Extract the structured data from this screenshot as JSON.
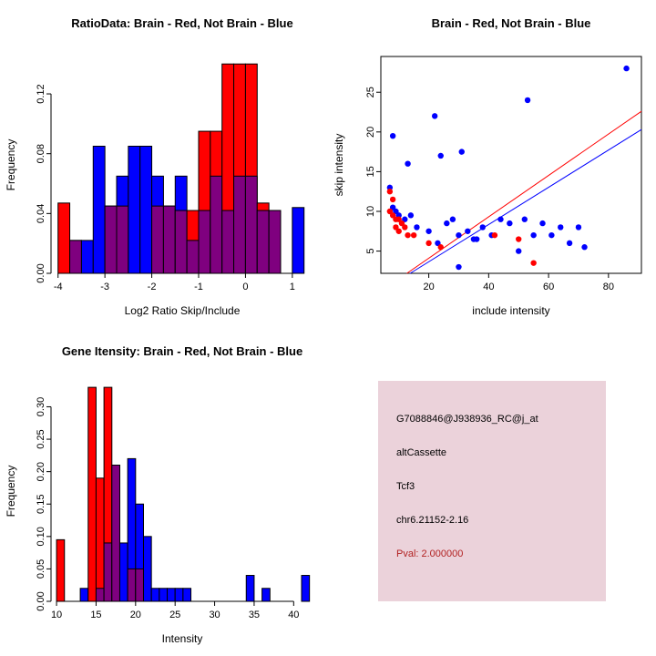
{
  "colors": {
    "red": "#FF0000",
    "blue": "#0000FF",
    "overlap": "#7F007F",
    "axis": "#000000",
    "background": "#FFFFFF"
  },
  "chart_data": [
    {
      "id": "ratio_hist",
      "type": "bar",
      "variant": "overlaid-histogram",
      "title": "RatioData: Brain - Red, Not Brain - Blue",
      "xlabel": "Log2 Ratio Skip/Include",
      "ylabel": "Frequency",
      "xlim": [
        -4.15,
        1.45
      ],
      "ylim": [
        0,
        0.145
      ],
      "xticks": [
        [
          -4,
          "-4"
        ],
        [
          -3,
          "-3"
        ],
        [
          -2,
          "-2"
        ],
        [
          -1,
          "-1"
        ],
        [
          0,
          "0"
        ],
        [
          1,
          "1"
        ]
      ],
      "yticks": [
        [
          0,
          "0.00"
        ],
        [
          0.04,
          "0.04"
        ],
        [
          0.08,
          "0.08"
        ],
        [
          0.12,
          "0.12"
        ]
      ],
      "bins_start": -4.0,
      "bin_width": 0.25,
      "grid": false,
      "legend": "none",
      "overlap_note": "red = Brain, blue = Not Brain, purple = overlap of both histograms",
      "series": [
        {
          "name": "Brain",
          "color": "red",
          "values": [
            0.047,
            0.022,
            0,
            0,
            0.045,
            0.045,
            0,
            0,
            0.045,
            0.045,
            0.042,
            0.042,
            0.095,
            0.095,
            0.14,
            0.14,
            0.14,
            0.047,
            0.042,
            0,
            0
          ]
        },
        {
          "name": "Not Brain",
          "color": "blue",
          "values": [
            0,
            0.022,
            0.022,
            0.085,
            0.045,
            0.065,
            0.085,
            0.085,
            0.065,
            0.045,
            0.065,
            0.022,
            0.042,
            0.065,
            0.042,
            0.065,
            0.065,
            0.042,
            0.042,
            0,
            0.044
          ]
        }
      ]
    },
    {
      "id": "intensity_scatter",
      "type": "scatter",
      "title": "Brain - Red, Not Brain - Blue",
      "xlabel": "include intensity",
      "ylabel": "skip intensity",
      "xlim": [
        4,
        91
      ],
      "ylim": [
        2.2,
        29.5
      ],
      "xticks": [
        [
          20,
          "20"
        ],
        [
          40,
          "40"
        ],
        [
          60,
          "60"
        ],
        [
          80,
          "80"
        ]
      ],
      "yticks": [
        [
          5,
          "5"
        ],
        [
          10,
          "10"
        ],
        [
          15,
          "15"
        ],
        [
          20,
          "20"
        ],
        [
          25,
          "25"
        ]
      ],
      "grid": false,
      "legend": "none",
      "series": [
        {
          "name": "Not Brain",
          "color": "blue",
          "points": [
            [
              8,
              19.5
            ],
            [
              13,
              16
            ],
            [
              22,
              22
            ],
            [
              24,
              17
            ],
            [
              31,
              17.5
            ],
            [
              53,
              24
            ],
            [
              86,
              28
            ],
            [
              7,
              13
            ],
            [
              8,
              10.5
            ],
            [
              9,
              10
            ],
            [
              10,
              9.5
            ],
            [
              12,
              9
            ],
            [
              14,
              9.5
            ],
            [
              16,
              8
            ],
            [
              20,
              7.5
            ],
            [
              23,
              6
            ],
            [
              26,
              8.5
            ],
            [
              28,
              9
            ],
            [
              30,
              7
            ],
            [
              33,
              7.5
            ],
            [
              35,
              6.5
            ],
            [
              38,
              8
            ],
            [
              41,
              7
            ],
            [
              44,
              9
            ],
            [
              47,
              8.5
            ],
            [
              50,
              5
            ],
            [
              52,
              9
            ],
            [
              55,
              7
            ],
            [
              58,
              8.5
            ],
            [
              61,
              7
            ],
            [
              64,
              8
            ],
            [
              67,
              6
            ],
            [
              70,
              8
            ],
            [
              72,
              5.5
            ],
            [
              30,
              3
            ],
            [
              36,
              6.5
            ]
          ]
        },
        {
          "name": "Brain",
          "color": "red",
          "points": [
            [
              7,
              12.5
            ],
            [
              8,
              11.5
            ],
            [
              7,
              10
            ],
            [
              8,
              9.5
            ],
            [
              9,
              9
            ],
            [
              10,
              9
            ],
            [
              11,
              8.5
            ],
            [
              9,
              8
            ],
            [
              12,
              8
            ],
            [
              10,
              7.5
            ],
            [
              13,
              7
            ],
            [
              15,
              7
            ],
            [
              20,
              6
            ],
            [
              42,
              7
            ],
            [
              50,
              6.5
            ],
            [
              55,
              3.5
            ],
            [
              24,
              5.5
            ]
          ]
        }
      ],
      "fit_lines": [
        {
          "name": "brain-fit",
          "color": "red",
          "p1": [
            12.7,
            2.2
          ],
          "p2": [
            91,
            22.6
          ]
        },
        {
          "name": "notbrain-fit",
          "color": "blue",
          "p1": [
            13.8,
            2.2
          ],
          "p2": [
            91,
            20.3
          ]
        }
      ]
    },
    {
      "id": "gene_intensity_hist",
      "type": "bar",
      "variant": "overlaid-histogram",
      "title": "Gene Itensity: Brain - Red, Not Brain - Blue",
      "xlabel": "Intensity",
      "ylabel": "Frequency",
      "xlim": [
        9.3,
        42.5
      ],
      "ylim": [
        0,
        0.34
      ],
      "xticks": [
        [
          10,
          "10"
        ],
        [
          15,
          "15"
        ],
        [
          20,
          "20"
        ],
        [
          25,
          "25"
        ],
        [
          30,
          "30"
        ],
        [
          35,
          "35"
        ],
        [
          40,
          "40"
        ]
      ],
      "yticks": [
        [
          0,
          "0.00"
        ],
        [
          0.05,
          "0.05"
        ],
        [
          0.1,
          "0.10"
        ],
        [
          0.15,
          "0.15"
        ],
        [
          0.2,
          "0.20"
        ],
        [
          0.25,
          "0.25"
        ],
        [
          0.3,
          "0.30"
        ]
      ],
      "bins_start": 10,
      "bin_width": 1,
      "grid": false,
      "legend": "none",
      "overlap_note": "red = Brain, blue = Not Brain, purple = overlap of both histograms",
      "series": [
        {
          "name": "Brain",
          "color": "red",
          "values": [
            0.095,
            0,
            0,
            0,
            0.33,
            0.19,
            0.33,
            0.21,
            0,
            0.05,
            0.05,
            0,
            0,
            0,
            0,
            0,
            0,
            0,
            0,
            0,
            0,
            0,
            0,
            0,
            0,
            0,
            0,
            0,
            0,
            0,
            0,
            0
          ]
        },
        {
          "name": "Not Brain",
          "color": "blue",
          "values": [
            0,
            0,
            0,
            0.02,
            0,
            0.02,
            0.09,
            0.21,
            0.09,
            0.22,
            0.15,
            0.1,
            0.02,
            0.02,
            0.02,
            0.02,
            0.02,
            0,
            0,
            0,
            0,
            0,
            0,
            0,
            0.04,
            0,
            0.02,
            0,
            0,
            0,
            0,
            0.04
          ]
        }
      ]
    }
  ],
  "info_box": {
    "probe_id": "G7088846@J938936_RC@j_at",
    "splice_type": "altCassette",
    "gene": "Tcf3",
    "locus": "chr6.21152-2.16",
    "pval": "Pval: 2.000000",
    "bg": "#EBD2DA",
    "text_color": "#000000",
    "pval_color": "#B22222"
  }
}
